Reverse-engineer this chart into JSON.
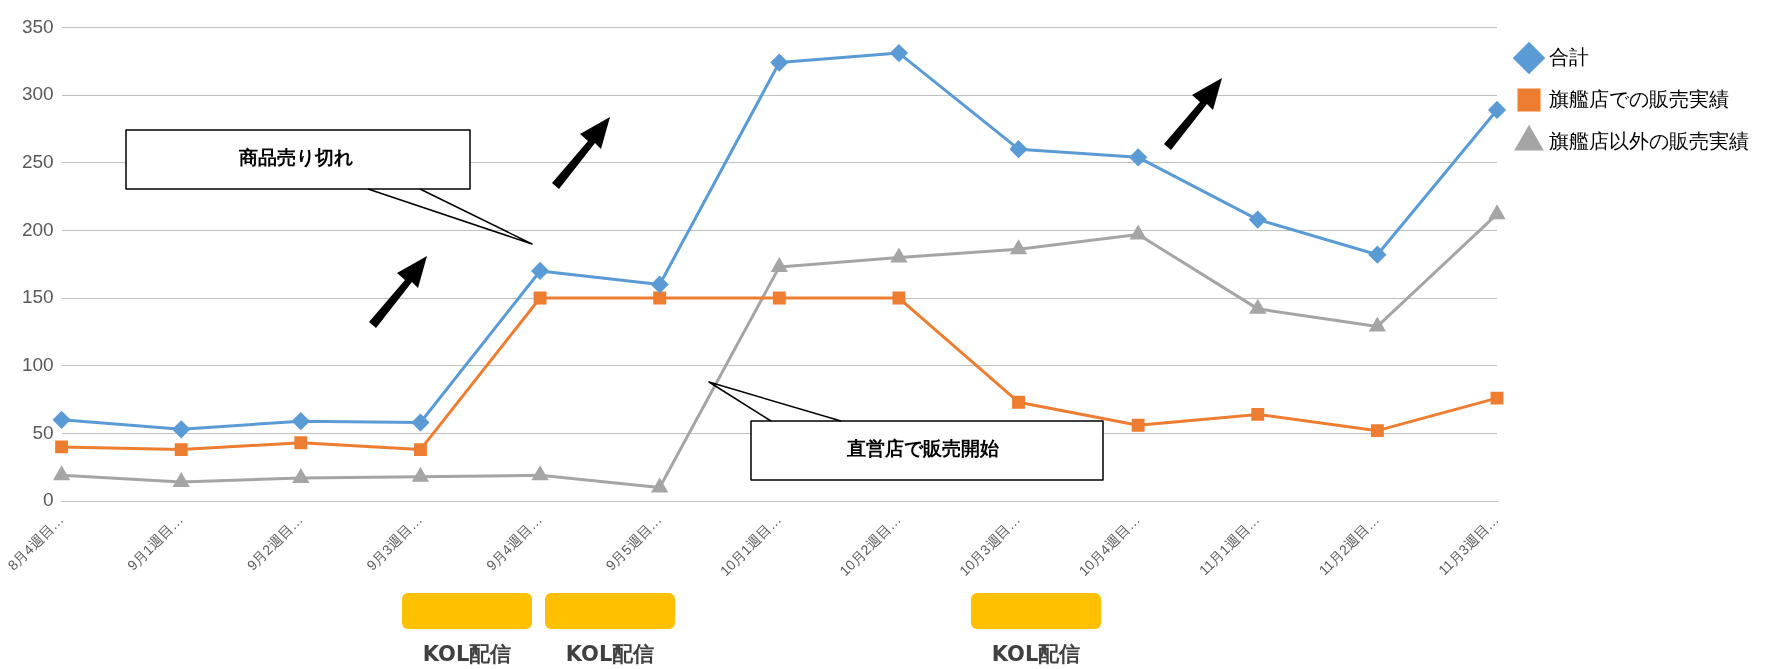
{
  "chart_data": {
    "type": "line",
    "categories": [
      "8月4週目…",
      "9月1週目…",
      "9月2週目…",
      "9月3週目…",
      "9月4週目…",
      "9月5週目…",
      "10月1週目…",
      "10月2週目…",
      "10月3週目…",
      "10月4週目…",
      "11月1週目…",
      "11月2週目…",
      "11月3週目…"
    ],
    "series": [
      {
        "name": "合計",
        "color": "#5b9bd5",
        "marker": "diamond",
        "values": [
          60,
          53,
          59,
          58,
          170,
          160,
          324,
          331,
          260,
          254,
          208,
          182,
          289
        ]
      },
      {
        "name": "旗艦店での販売実績",
        "color": "#ed7d31",
        "marker": "square",
        "values": [
          40,
          38,
          43,
          38,
          150,
          150,
          150,
          150,
          73,
          56,
          64,
          52,
          76
        ]
      },
      {
        "name": "旗艦店以外の販売実績",
        "color": "#a5a5a5",
        "marker": "triangle",
        "values": [
          19,
          14,
          17,
          18,
          19,
          10,
          173,
          180,
          186,
          197,
          142,
          129,
          212
        ]
      }
    ],
    "ylim": [
      0,
      350
    ],
    "yticks": [
      0,
      50,
      100,
      150,
      200,
      250,
      300,
      350
    ],
    "grid": "y",
    "legend": "top right",
    "line_style": "solid",
    "annotations": [
      "商品売り切れ",
      "直営店で販売開始",
      "KOL配信",
      "KOL配信",
      "KOL配信"
    ]
  }
}
